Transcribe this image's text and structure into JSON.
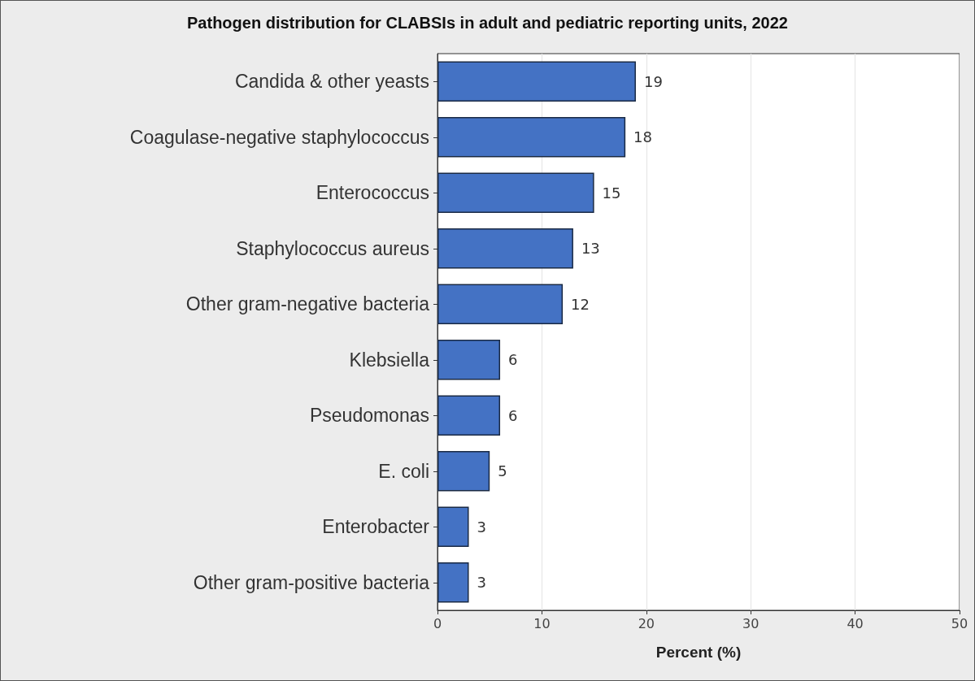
{
  "chart_data": {
    "type": "bar",
    "orientation": "horizontal",
    "title": "Pathogen distribution for CLABSIs in adult and pediatric reporting units, 2022",
    "categories": [
      "Candida & other yeasts",
      "Coagulase-negative staphylococcus",
      "Enterococcus",
      "Staphylococcus aureus",
      "Other gram-negative bacteria",
      "Klebsiella",
      "Pseudomonas",
      "E. coli",
      "Enterobacter",
      "Other gram-positive bacteria"
    ],
    "values": [
      19,
      18,
      15,
      13,
      12,
      6,
      6,
      5,
      3,
      3
    ],
    "color": "#4472c4",
    "xlabel": "Percent (%)",
    "xlim": [
      0,
      50
    ],
    "xticks": [
      0,
      10,
      20,
      30,
      40,
      50
    ],
    "grid": "x",
    "data_labels": true
  }
}
